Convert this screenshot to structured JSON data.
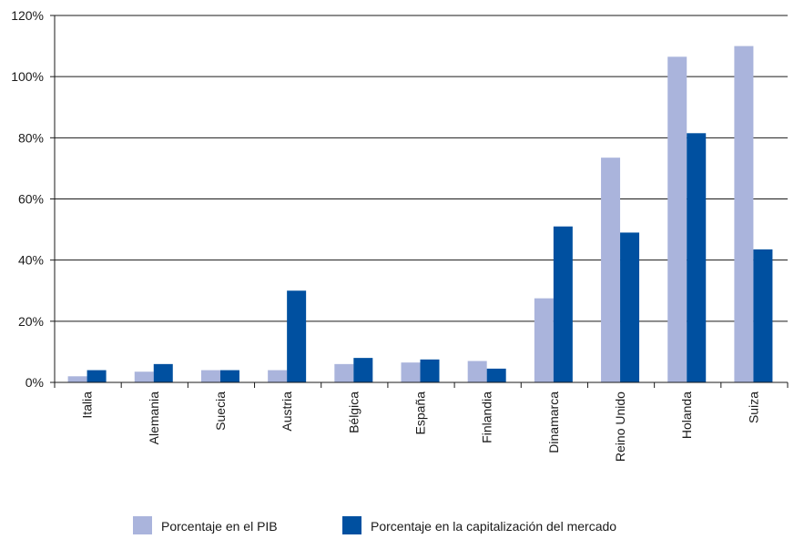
{
  "chart_data": {
    "type": "bar",
    "categories": [
      "Italia",
      "Alemania",
      "Suecia",
      "Austria",
      "Bélgica",
      "España",
      "Finlandia",
      "Dinamarca",
      "Reino Unido",
      "Holanda",
      "Suiza"
    ],
    "series": [
      {
        "name": "Porcentaje en el PIB",
        "color": "#aab4dc",
        "values": [
          2,
          3.5,
          4,
          4,
          6,
          6.5,
          7,
          27.5,
          73.5,
          106.5,
          110
        ]
      },
      {
        "name": "Porcentaje en la capitalización del mercado",
        "color": "#0050a0",
        "values": [
          4,
          6,
          4,
          30,
          8,
          7.5,
          4.5,
          51,
          49,
          81.5,
          43.5
        ]
      }
    ],
    "ylim": [
      0,
      120
    ],
    "yticks": [
      0,
      20,
      40,
      60,
      80,
      100,
      120
    ],
    "ytick_labels": [
      "0%",
      "20%",
      "40%",
      "60%",
      "80%",
      "100%",
      "120%"
    ],
    "grid": true,
    "legend_position": "bottom"
  }
}
